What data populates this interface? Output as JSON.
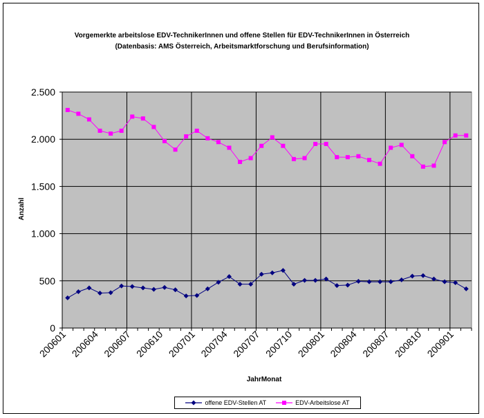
{
  "chart_data": {
    "type": "line",
    "title": "Vorgemerkte arbeitslose EDV-TechnikerInnen und offene Stellen für EDV-TechnikerInnen in  Österreich",
    "subtitle": "(Datenbasis: AMS Österreich, Arbeitsmarktforschung und Berufsinformation)",
    "xlabel": "JahrMonat",
    "ylabel": "Anzahl",
    "ylim": [
      0,
      2500
    ],
    "yticks": [
      0,
      500,
      1000,
      1500,
      2000,
      2500
    ],
    "ytick_labels": [
      "0",
      "500",
      "1.000",
      "1.500",
      "2.000",
      "2.500"
    ],
    "x": [
      "200601",
      "200602",
      "200603",
      "200604",
      "200605",
      "200606",
      "200607",
      "200608",
      "200609",
      "200610",
      "200611",
      "200612",
      "200701",
      "200702",
      "200703",
      "200704",
      "200705",
      "200706",
      "200707",
      "200708",
      "200709",
      "200710",
      "200711",
      "200712",
      "200801",
      "200802",
      "200803",
      "200804",
      "200805",
      "200806",
      "200807",
      "200808",
      "200809",
      "200810",
      "200811",
      "200812",
      "200901",
      "200902"
    ],
    "xtick_labels": [
      "200601",
      "200604",
      "200607",
      "200610",
      "200701",
      "200704",
      "200707",
      "200710",
      "200801",
      "200804",
      "200807",
      "200810",
      "200901"
    ],
    "xtick_indices": [
      0,
      3,
      6,
      9,
      12,
      15,
      18,
      21,
      24,
      27,
      30,
      33,
      36
    ],
    "grid": true,
    "legend_position": "bottom",
    "series": [
      {
        "name": "offene EDV-Stellen AT",
        "color": "#000080",
        "marker": "diamond",
        "values": [
          320,
          385,
          425,
          370,
          375,
          445,
          440,
          425,
          410,
          430,
          405,
          340,
          345,
          415,
          485,
          545,
          465,
          465,
          570,
          585,
          610,
          465,
          505,
          505,
          520,
          450,
          455,
          495,
          490,
          490,
          490,
          510,
          550,
          555,
          520,
          490,
          480,
          415
        ]
      },
      {
        "name": "EDV-Arbeitslose AT",
        "color": "#ff00ff",
        "marker": "square",
        "values": [
          2310,
          2270,
          2210,
          2090,
          2060,
          2090,
          2240,
          2220,
          2130,
          1980,
          1890,
          2030,
          2090,
          2010,
          1970,
          1910,
          1760,
          1800,
          1930,
          2020,
          1930,
          1790,
          1800,
          1950,
          1950,
          1810,
          1810,
          1820,
          1780,
          1740,
          1910,
          1940,
          1820,
          1710,
          1720,
          1970,
          2040,
          2040
        ]
      }
    ]
  }
}
